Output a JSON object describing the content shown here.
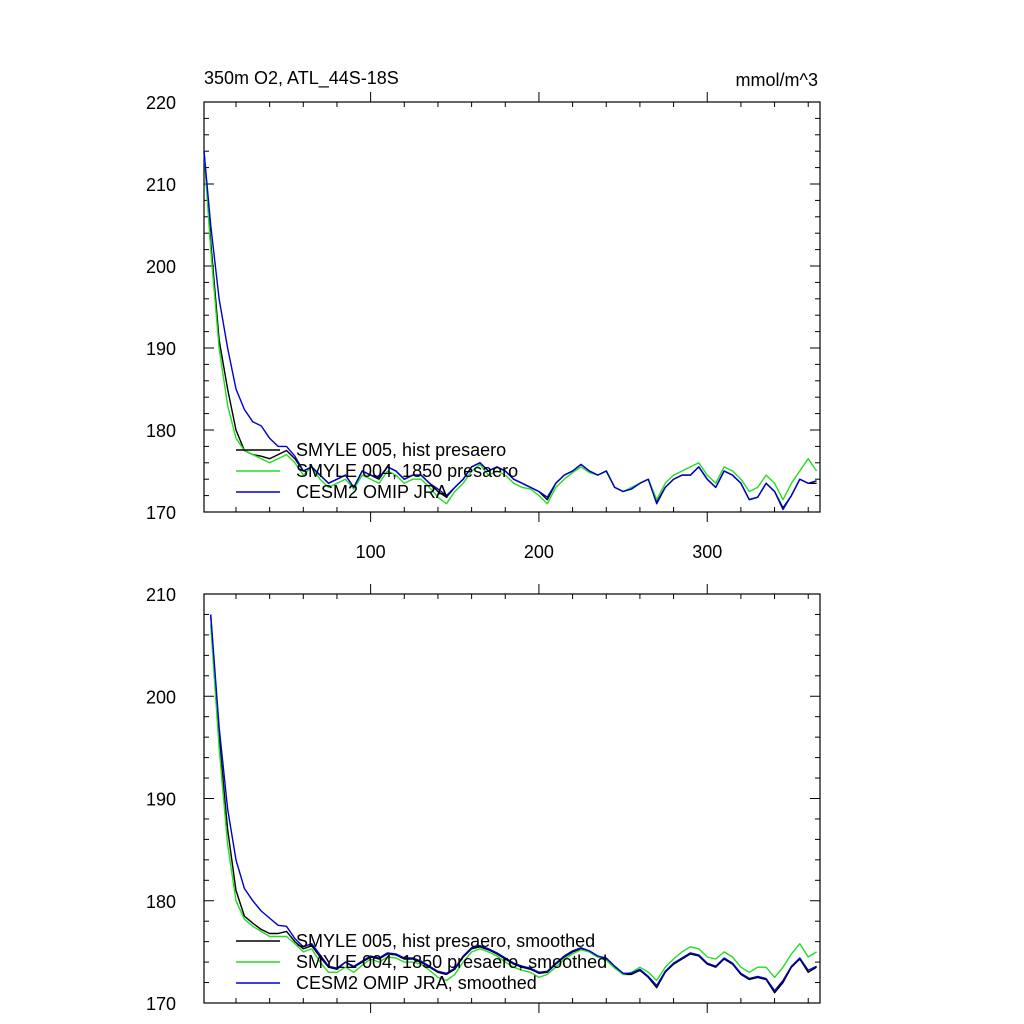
{
  "figure": {
    "title_left": "350m O2, ATL_44S-18S",
    "title_right": "mmol/m^3"
  },
  "colors": {
    "black": "#000000",
    "green": "#22dd22",
    "blue": "#0000cc"
  },
  "chart_data": [
    {
      "type": "line",
      "title": "350m O2, ATL_44S-18S",
      "units": "mmol/m^3",
      "xlim": [
        1,
        367
      ],
      "ylim": [
        170,
        220
      ],
      "xticks": [
        100,
        200,
        300
      ],
      "xtick_labels": [
        "100",
        "200",
        "300"
      ],
      "yticks": [
        170,
        180,
        190,
        200,
        210,
        220
      ],
      "ytick_labels": [
        "170",
        "180",
        "190",
        "200",
        "210",
        "220"
      ],
      "grid": false,
      "legend_position": "bottom-left",
      "series": [
        {
          "name": "SMYLE 005, hist presaero",
          "color": "#000000",
          "x": [
            1,
            5,
            10,
            15,
            20,
            25,
            30,
            35,
            40,
            45,
            50,
            55,
            60,
            65,
            70,
            75,
            80,
            85,
            90,
            95,
            100,
            105,
            110,
            115,
            120,
            125,
            130,
            135,
            140,
            145,
            150,
            155,
            160,
            165,
            170,
            175,
            180,
            185,
            190,
            195,
            200,
            205,
            210,
            215,
            220,
            225,
            230,
            235,
            240,
            245,
            250,
            255,
            260,
            265,
            270,
            275,
            280,
            285,
            290,
            295,
            300,
            305,
            310,
            315,
            320,
            325,
            330,
            335,
            340,
            345,
            350,
            355,
            360,
            365
          ],
          "y": [
            214,
            203,
            191,
            185,
            180,
            177.5,
            177,
            176.8,
            176.5,
            177,
            177.5,
            176.5,
            175,
            175.5,
            174.5,
            173.5,
            174,
            174.5,
            173,
            175,
            174.5,
            174,
            175.5,
            175,
            174,
            174.5,
            174.5,
            173.5,
            172.5,
            171.8,
            173,
            174,
            175.5,
            176,
            175,
            175.5,
            175,
            174,
            173.5,
            173,
            172.5,
            171.5,
            173.5,
            174.5,
            175,
            175.8,
            175,
            174.5,
            175,
            173,
            172.5,
            172.8,
            173.5,
            174,
            171.2,
            173,
            174,
            174.5,
            174.5,
            175.5,
            174,
            173,
            175,
            174.5,
            173.5,
            171.5,
            171.8,
            173.5,
            172.5,
            170.5,
            172,
            174,
            173.5,
            173.5
          ]
        },
        {
          "name": "SMYLE 004, 1850 presaero",
          "color": "#22dd22",
          "x": [
            1,
            5,
            10,
            15,
            20,
            25,
            30,
            35,
            40,
            45,
            50,
            55,
            60,
            65,
            70,
            75,
            80,
            85,
            90,
            95,
            100,
            105,
            110,
            115,
            120,
            125,
            130,
            135,
            140,
            145,
            150,
            155,
            160,
            165,
            170,
            175,
            180,
            185,
            190,
            195,
            200,
            205,
            210,
            215,
            220,
            225,
            230,
            235,
            240,
            245,
            250,
            255,
            260,
            265,
            270,
            275,
            280,
            285,
            290,
            295,
            300,
            305,
            310,
            315,
            320,
            325,
            330,
            335,
            340,
            345,
            350,
            355,
            360,
            365
          ],
          "y": [
            214,
            202,
            190,
            183,
            179,
            177.5,
            177,
            176.5,
            176,
            176.5,
            177,
            176,
            174.5,
            175.5,
            174,
            173,
            173.5,
            174,
            172.8,
            174.5,
            174,
            173.5,
            175,
            174.5,
            173.5,
            174,
            174,
            173,
            171.8,
            171,
            172.5,
            173.5,
            175,
            175.8,
            174.5,
            175,
            174.5,
            173.5,
            173,
            172.8,
            172,
            171,
            173,
            174,
            174.8,
            175.5,
            174.8,
            174.5,
            175,
            173,
            172.5,
            173,
            173.5,
            174,
            171.5,
            173.5,
            174.5,
            175,
            175.5,
            176,
            174.5,
            173.5,
            175.5,
            175,
            174,
            172.5,
            173,
            174.5,
            173.5,
            171.5,
            173.5,
            175,
            176.5,
            175
          ]
        },
        {
          "name": "CESM2 OMIP JRA",
          "color": "#0000cc",
          "x": [
            1,
            5,
            10,
            15,
            20,
            25,
            30,
            35,
            40,
            45,
            50,
            55,
            60,
            65,
            70,
            75,
            80,
            85,
            90,
            95,
            100,
            105,
            110,
            115,
            120,
            125,
            130,
            135,
            140,
            145,
            150,
            155,
            160,
            165,
            170,
            175,
            180,
            185,
            190,
            195,
            200,
            205,
            210,
            215,
            220,
            225,
            230,
            235,
            240,
            245,
            250,
            255,
            260,
            265,
            270,
            275,
            280,
            285,
            290,
            295,
            300,
            305,
            310,
            315,
            320,
            325,
            330,
            335,
            340,
            345,
            350,
            355,
            360,
            365
          ],
          "y": [
            214,
            205,
            196,
            190,
            185,
            182.5,
            181,
            180.5,
            179,
            178,
            178,
            176.8,
            175,
            175.5,
            174.5,
            173.5,
            174,
            174.5,
            173,
            175,
            174.5,
            174.2,
            175.5,
            175,
            174,
            174.5,
            174.5,
            173.5,
            172.8,
            172,
            173,
            174,
            175.5,
            176,
            175,
            175.5,
            175,
            174,
            173.5,
            173,
            172.5,
            171.8,
            173.5,
            174.5,
            175,
            175.8,
            175,
            174.5,
            175,
            173,
            172.5,
            172.8,
            173.5,
            174,
            171,
            173,
            174,
            174.5,
            174.5,
            175.5,
            174,
            173,
            175,
            174.5,
            173.5,
            171.5,
            171.8,
            173.5,
            172.5,
            170.3,
            172,
            174,
            173.5,
            173.8
          ]
        }
      ]
    },
    {
      "type": "line",
      "xlim": [
        1,
        367
      ],
      "ylim": [
        170,
        210
      ],
      "xticks": [
        100,
        200,
        300
      ],
      "yticks": [
        170,
        180,
        190,
        200,
        210
      ],
      "ytick_labels": [
        "170",
        "180",
        "190",
        "200",
        "210"
      ],
      "grid": false,
      "legend_position": "bottom-left",
      "series": [
        {
          "name": "SMYLE 005, hist presaero, smoothed",
          "color": "#000000",
          "x": [
            5,
            10,
            15,
            20,
            25,
            30,
            35,
            40,
            45,
            50,
            55,
            60,
            65,
            70,
            75,
            80,
            85,
            90,
            95,
            100,
            105,
            110,
            115,
            120,
            125,
            130,
            135,
            140,
            145,
            150,
            155,
            160,
            165,
            170,
            175,
            180,
            185,
            190,
            195,
            200,
            205,
            210,
            215,
            220,
            225,
            230,
            235,
            240,
            245,
            250,
            255,
            260,
            265,
            270,
            275,
            280,
            285,
            290,
            295,
            300,
            305,
            310,
            315,
            320,
            325,
            330,
            335,
            340,
            345,
            350,
            355,
            360,
            365
          ],
          "y": [
            208,
            196,
            187,
            181,
            178.5,
            177.8,
            177.2,
            176.8,
            176.8,
            177,
            176,
            175.3,
            175.6,
            174.5,
            173.5,
            173.3,
            174,
            173.5,
            174,
            174.5,
            174.3,
            174.8,
            174.7,
            174.3,
            174.3,
            174,
            173.5,
            173,
            172.8,
            173.3,
            174.5,
            175.3,
            175.5,
            175.2,
            174.8,
            174.3,
            173.8,
            173.5,
            173.3,
            172.9,
            173,
            173.8,
            174.5,
            175,
            175.3,
            175,
            174.5,
            174.3,
            173.5,
            172.8,
            172.8,
            173.2,
            172.5,
            171.5,
            173,
            173.8,
            174.3,
            174.8,
            174.6,
            173.8,
            173.5,
            174.3,
            173.8,
            172.8,
            172.3,
            172.5,
            172.3,
            171,
            172,
            173.5,
            174.3,
            173,
            173.5
          ]
        },
        {
          "name": "SMYLE 004, 1850 presaero, smoothed",
          "color": "#22dd22",
          "x": [
            5,
            10,
            15,
            20,
            25,
            30,
            35,
            40,
            45,
            50,
            55,
            60,
            65,
            70,
            75,
            80,
            85,
            90,
            95,
            100,
            105,
            110,
            115,
            120,
            125,
            130,
            135,
            140,
            145,
            150,
            155,
            160,
            165,
            170,
            175,
            180,
            185,
            190,
            195,
            200,
            205,
            210,
            215,
            220,
            225,
            230,
            235,
            240,
            245,
            250,
            255,
            260,
            265,
            270,
            275,
            280,
            285,
            290,
            295,
            300,
            305,
            310,
            315,
            320,
            325,
            330,
            335,
            340,
            345,
            350,
            355,
            360,
            365
          ],
          "y": [
            207,
            195,
            185.5,
            180,
            178.2,
            177.5,
            177,
            176.5,
            176.5,
            176.5,
            175.8,
            175,
            175.3,
            174,
            173,
            173,
            173.5,
            173,
            173.7,
            174.3,
            174,
            174.5,
            174.4,
            174,
            174,
            173.8,
            173.2,
            172.5,
            172.2,
            172.8,
            174,
            175,
            175.3,
            175,
            174.6,
            174,
            173.5,
            173.2,
            173,
            172.5,
            172.8,
            173.5,
            174.3,
            174.8,
            175.2,
            175,
            174.5,
            174.2,
            173.4,
            172.8,
            173,
            173.5,
            173,
            172.2,
            173.5,
            174.3,
            175,
            175.5,
            175.3,
            174.5,
            174.3,
            175,
            174.5,
            173.5,
            173,
            173.5,
            173.5,
            172.5,
            173.5,
            174.8,
            175.8,
            174.5,
            175
          ]
        },
        {
          "name": "CESM2 OMIP JRA, smoothed",
          "color": "#0000cc",
          "x": [
            5,
            10,
            15,
            20,
            25,
            30,
            35,
            40,
            45,
            50,
            55,
            60,
            65,
            70,
            75,
            80,
            85,
            90,
            95,
            100,
            105,
            110,
            115,
            120,
            125,
            130,
            135,
            140,
            145,
            150,
            155,
            160,
            165,
            170,
            175,
            180,
            185,
            190,
            195,
            200,
            205,
            210,
            215,
            220,
            225,
            230,
            235,
            240,
            245,
            250,
            255,
            260,
            265,
            270,
            275,
            280,
            285,
            290,
            295,
            300,
            305,
            310,
            315,
            320,
            325,
            330,
            335,
            340,
            345,
            350,
            355,
            360,
            365
          ],
          "y": [
            208,
            197,
            189,
            184,
            181.2,
            180,
            179,
            178.3,
            177.6,
            177.5,
            176.3,
            175.5,
            175.8,
            174.7,
            173.6,
            173.4,
            174,
            173.6,
            174.1,
            174.6,
            174.4,
            174.9,
            174.8,
            174.4,
            174.4,
            174.1,
            173.6,
            173.1,
            172.9,
            173.4,
            174.6,
            175.4,
            175.6,
            175.3,
            174.9,
            174.4,
            173.9,
            173.6,
            173.4,
            173,
            173.1,
            173.9,
            174.6,
            175.1,
            175.4,
            175.1,
            174.6,
            174.4,
            173.6,
            172.9,
            172.9,
            173.3,
            172.6,
            171.7,
            173.1,
            173.9,
            174.4,
            174.9,
            174.7,
            173.9,
            173.6,
            174.4,
            173.9,
            172.9,
            172.4,
            172.6,
            172.4,
            171.2,
            172.2,
            173.6,
            174.4,
            173.2,
            173.6
          ]
        }
      ]
    }
  ]
}
